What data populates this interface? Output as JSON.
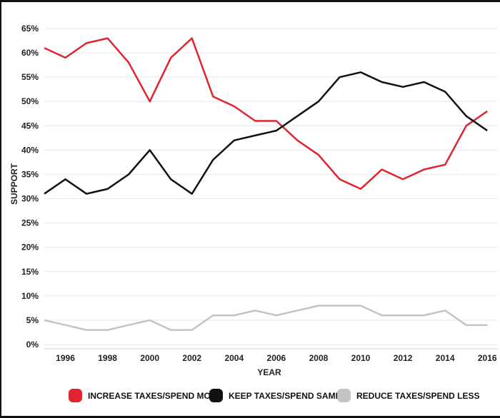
{
  "chart_data": {
    "type": "line",
    "xlabel": "YEAR",
    "ylabel": "SUPPORT",
    "ylim": [
      0,
      65
    ],
    "xlim": [
      1995,
      2016.5
    ],
    "y_ticks": [
      "0%",
      "5%",
      "10%",
      "15%",
      "20%",
      "25%",
      "30%",
      "35%",
      "40%",
      "45%",
      "50%",
      "55%",
      "60%",
      "65%"
    ],
    "x_ticks": [
      "1996",
      "1998",
      "2000",
      "2002",
      "2004",
      "2006",
      "2008",
      "2010",
      "2012",
      "2014",
      "2016"
    ],
    "grid": "horizontal",
    "legend_position": "bottom",
    "x": [
      1995,
      1996,
      1997,
      1998,
      1999,
      2000,
      2001,
      2002,
      2003,
      2004,
      2005,
      2006,
      2007,
      2008,
      2009,
      2010,
      2011,
      2012,
      2013,
      2014,
      2015,
      2016
    ],
    "series": [
      {
        "name": "INCREASE TAXES/SPEND MORE",
        "color": "#e1242f",
        "values": [
          61,
          59,
          62,
          63,
          58,
          50,
          59,
          63,
          51,
          49,
          46,
          46,
          42,
          39,
          34,
          32,
          36,
          34,
          36,
          37,
          45,
          48
        ]
      },
      {
        "name": "KEEP TAXES/SPEND SAME",
        "color": "#111111",
        "values": [
          31,
          34,
          31,
          32,
          35,
          40,
          34,
          31,
          38,
          42,
          43,
          44,
          47,
          50,
          55,
          56,
          54,
          53,
          54,
          52,
          47,
          44
        ]
      },
      {
        "name": "REDUCE TAXES/SPEND LESS",
        "color": "#c4c4c4",
        "values": [
          5,
          4,
          3,
          3,
          4,
          5,
          3,
          3,
          6,
          6,
          7,
          6,
          7,
          8,
          8,
          8,
          6,
          6,
          6,
          7,
          4,
          4
        ]
      }
    ]
  }
}
